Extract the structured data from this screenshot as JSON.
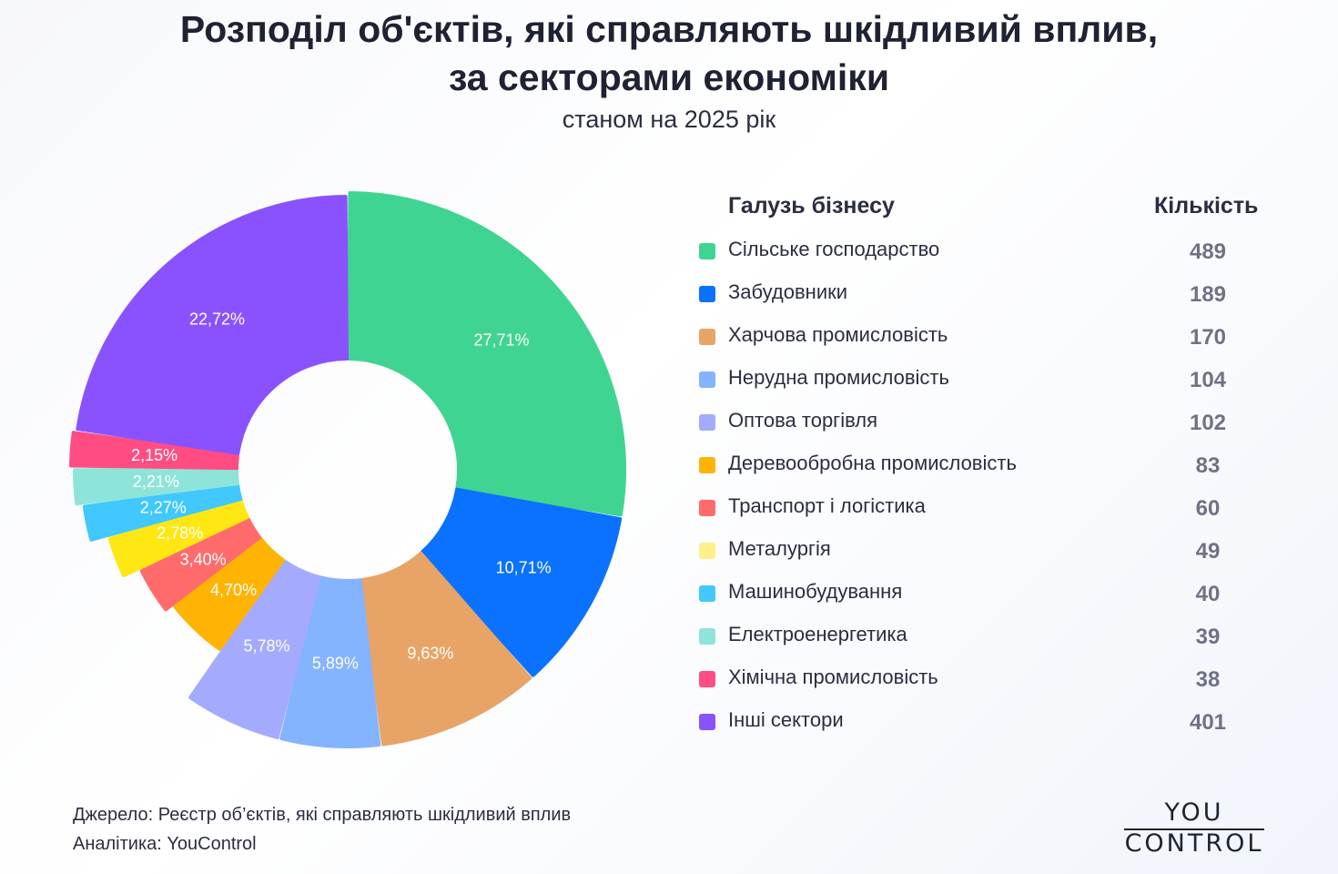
{
  "title": {
    "line1": "Розподіл об'єктів, які справляють шкідливий вплив,",
    "line2": "за секторами економіки"
  },
  "subtitle": "станом на 2025 рік",
  "legend": {
    "header_label": "Галузь бізнесу",
    "header_count": "Кількість"
  },
  "chart_data": {
    "type": "pie",
    "variant": "donut",
    "title": "Розподіл об'єктів, які справляють шкідливий вплив, за секторами економіки",
    "subtitle": "станом на 2025 рік",
    "legend_placement": "right",
    "categories": [
      "Сільське господарство",
      "Забудовники",
      "Харчова промисловість",
      "Нерудна промисловість",
      "Оптова торгівля",
      "Деревообробна промисловість",
      "Транспорт і логістика",
      "Металургія",
      "Машинобудування",
      "Електроенергетика",
      "Хімічна промисловість",
      "Інші сектори"
    ],
    "values": [
      489,
      189,
      170,
      104,
      102,
      83,
      60,
      49,
      40,
      39,
      38,
      401
    ],
    "percent_labels": [
      "27,71%",
      "10,71%",
      "9,63%",
      "5,89%",
      "5,78%",
      "4,70%",
      "3,40%",
      "2,78%",
      "2,27%",
      "2,21%",
      "2,15%",
      "22,72%"
    ],
    "colors": [
      "#40d492",
      "#0a72ff",
      "#e7a466",
      "#84b3ff",
      "#a4abff",
      "#ffb404",
      "#ff6b6b",
      "#ffe714",
      "#40c8ff",
      "#8ee4d8",
      "#ff4d84",
      "#8a52fe"
    ],
    "legend_swatch_colors": [
      "#40d492",
      "#0a72ff",
      "#e7a466",
      "#84b3ff",
      "#a4abff",
      "#ffb404",
      "#ff6b6b",
      "#fff08a",
      "#40c8ff",
      "#8ee4d8",
      "#ff4d84",
      "#8a52fe"
    ]
  },
  "footer": {
    "source": "Джерело: Реєстр об’єктів, які справляють шкідливий вплив",
    "analytics": "Аналітика: YouControl"
  },
  "logo": {
    "top": "YOU",
    "bottom": "CONTROL"
  }
}
